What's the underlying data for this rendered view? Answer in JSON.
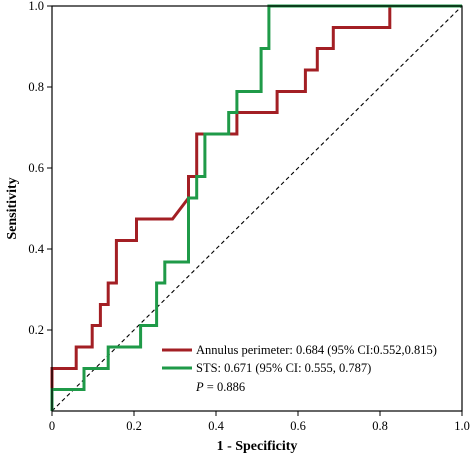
{
  "chart_data": {
    "type": "line",
    "xlabel": "1 - Specificity",
    "ylabel": "Sensitivity",
    "xlim": [
      0,
      1
    ],
    "ylim": [
      0,
      1
    ],
    "x_ticks": [
      "0",
      "0.2",
      "0.4",
      "0.6",
      "0.8",
      "1.0"
    ],
    "y_ticks": [
      "0.2",
      "0.4",
      "0.6",
      "0.8",
      "1.0"
    ],
    "grid": false,
    "legend_position": "bottom-right",
    "reference_line": {
      "style": "dashed",
      "from": [
        0,
        0
      ],
      "to": [
        1,
        1
      ]
    },
    "series": [
      {
        "name": "Annulus perimeter: 0.684 (95% CI:0.552,0.815)",
        "color": "#a31f24",
        "points": [
          [
            0.0,
            0.0
          ],
          [
            0.0,
            0.105
          ],
          [
            0.059,
            0.105
          ],
          [
            0.059,
            0.158
          ],
          [
            0.098,
            0.158
          ],
          [
            0.098,
            0.211
          ],
          [
            0.118,
            0.211
          ],
          [
            0.118,
            0.263
          ],
          [
            0.137,
            0.263
          ],
          [
            0.137,
            0.316
          ],
          [
            0.157,
            0.316
          ],
          [
            0.157,
            0.421
          ],
          [
            0.206,
            0.421
          ],
          [
            0.206,
            0.474
          ],
          [
            0.294,
            0.474
          ],
          [
            0.333,
            0.526
          ],
          [
            0.333,
            0.579
          ],
          [
            0.353,
            0.579
          ],
          [
            0.353,
            0.684
          ],
          [
            0.451,
            0.684
          ],
          [
            0.451,
            0.737
          ],
          [
            0.549,
            0.737
          ],
          [
            0.549,
            0.789
          ],
          [
            0.618,
            0.789
          ],
          [
            0.618,
            0.842
          ],
          [
            0.647,
            0.842
          ],
          [
            0.647,
            0.895
          ],
          [
            0.686,
            0.895
          ],
          [
            0.686,
            0.947
          ],
          [
            0.824,
            0.947
          ],
          [
            0.824,
            1.0
          ],
          [
            1.0,
            1.0
          ]
        ]
      },
      {
        "name": "STS: 0.671 (95% CI: 0.555, 0.787)",
        "color": "#1f9a48",
        "points": [
          [
            0.0,
            0.0
          ],
          [
            0.0,
            0.053
          ],
          [
            0.078,
            0.053
          ],
          [
            0.078,
            0.105
          ],
          [
            0.137,
            0.105
          ],
          [
            0.137,
            0.158
          ],
          [
            0.216,
            0.158
          ],
          [
            0.216,
            0.211
          ],
          [
            0.255,
            0.211
          ],
          [
            0.255,
            0.316
          ],
          [
            0.275,
            0.316
          ],
          [
            0.275,
            0.368
          ],
          [
            0.333,
            0.368
          ],
          [
            0.333,
            0.526
          ],
          [
            0.353,
            0.526
          ],
          [
            0.353,
            0.579
          ],
          [
            0.373,
            0.579
          ],
          [
            0.373,
            0.684
          ],
          [
            0.431,
            0.684
          ],
          [
            0.431,
            0.737
          ],
          [
            0.451,
            0.737
          ],
          [
            0.451,
            0.789
          ],
          [
            0.51,
            0.789
          ],
          [
            0.51,
            0.895
          ],
          [
            0.529,
            0.895
          ],
          [
            0.529,
            1.0
          ],
          [
            1.0,
            1.0
          ]
        ]
      }
    ],
    "annotation": {
      "label": "P",
      "value": " = 0.886"
    }
  }
}
